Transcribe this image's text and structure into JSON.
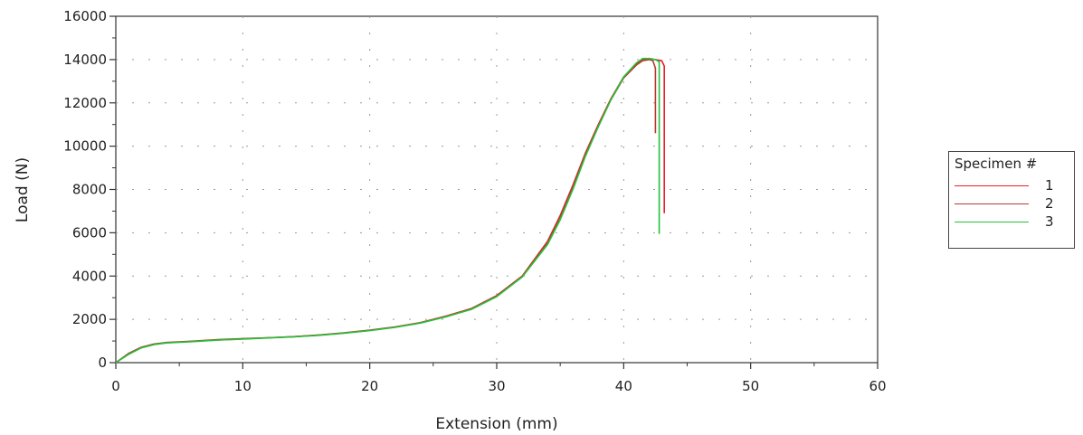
{
  "chart_data": {
    "type": "line",
    "xlabel": "Extension (mm)",
    "ylabel": "Load (N)",
    "xlim": [
      0,
      60
    ],
    "ylim": [
      0,
      16000
    ],
    "xticks": [
      0,
      10,
      20,
      30,
      40,
      50,
      60
    ],
    "yticks": [
      0,
      2000,
      4000,
      6000,
      8000,
      10000,
      12000,
      14000,
      16000
    ],
    "grid": "dotted",
    "legend": {
      "title": "Specimen #",
      "placement": "right"
    },
    "series": [
      {
        "name": "1",
        "color": "#e8202a",
        "x": [
          0,
          1,
          2,
          3,
          4,
          6,
          8,
          10,
          12,
          14,
          16,
          18,
          20,
          22,
          24,
          26,
          28,
          30,
          32,
          34,
          35,
          36,
          37,
          38,
          39,
          40,
          41,
          41.5,
          42,
          42.5,
          43,
          43.2,
          43.2
        ],
        "y": [
          0,
          400,
          700,
          850,
          920,
          980,
          1050,
          1100,
          1150,
          1200,
          1280,
          1380,
          1500,
          1650,
          1850,
          2150,
          2500,
          3100,
          4000,
          5600,
          6800,
          8200,
          9700,
          11000,
          12200,
          13200,
          13800,
          14000,
          14050,
          14000,
          13950,
          13700,
          6900
        ]
      },
      {
        "name": "2",
        "color": "#b83a2e",
        "x": [
          0,
          1,
          2,
          3,
          4,
          6,
          8,
          10,
          12,
          14,
          16,
          18,
          20,
          22,
          24,
          26,
          28,
          30,
          32,
          34,
          35,
          36,
          37,
          38,
          39,
          40,
          41,
          41.5,
          42,
          42.3,
          42.5,
          42.5
        ],
        "y": [
          0,
          420,
          710,
          860,
          930,
          990,
          1060,
          1110,
          1150,
          1200,
          1270,
          1370,
          1490,
          1640,
          1840,
          2130,
          2480,
          3080,
          3980,
          5550,
          6750,
          8150,
          9650,
          10950,
          12150,
          13150,
          13750,
          13950,
          14000,
          13950,
          13600,
          10600
        ]
      },
      {
        "name": "3",
        "color": "#22c33a",
        "x": [
          0,
          1,
          2,
          3,
          4,
          6,
          8,
          10,
          12,
          14,
          16,
          18,
          20,
          22,
          24,
          26,
          28,
          30,
          32,
          34,
          35,
          36,
          37,
          38,
          39,
          40,
          41,
          41.5,
          42,
          42.5,
          42.8,
          42.8
        ],
        "y": [
          0,
          380,
          680,
          830,
          910,
          970,
          1040,
          1090,
          1140,
          1190,
          1260,
          1360,
          1480,
          1630,
          1830,
          2120,
          2460,
          3050,
          3950,
          5450,
          6600,
          8000,
          9550,
          10900,
          12150,
          13200,
          13850,
          14050,
          14050,
          14000,
          13900,
          5950
        ]
      }
    ]
  }
}
